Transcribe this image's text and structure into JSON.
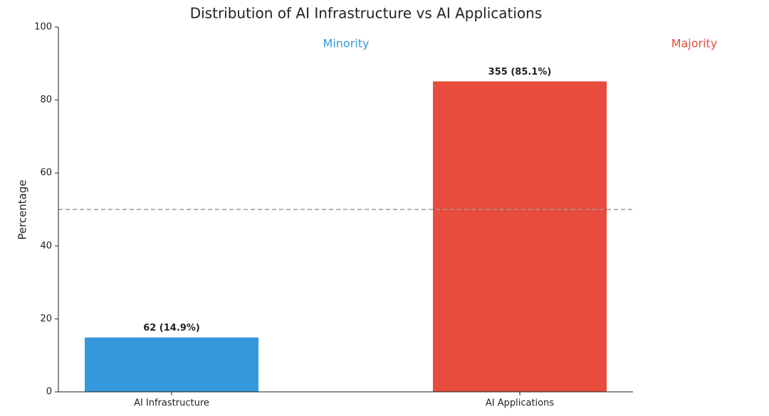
{
  "chart_data": {
    "type": "bar",
    "title": "Distribution of AI Infrastructure vs AI Applications",
    "y_label": "Percentage",
    "categories": [
      "AI Infrastructure",
      "AI Applications"
    ],
    "values": [
      14.9,
      85.1
    ],
    "value_labels": [
      "62 (14.9%)",
      "355 (85.1%)"
    ],
    "colors": [
      "#3498db",
      "#e74c3c"
    ],
    "ylim": [
      0,
      100
    ],
    "yticks": [
      0,
      20,
      40,
      60,
      80,
      100
    ],
    "reference_line": 50,
    "annotations": [
      {
        "text": "Minority",
        "color": "#3498db"
      },
      {
        "text": "Majority",
        "color": "#e74c3c"
      }
    ]
  }
}
